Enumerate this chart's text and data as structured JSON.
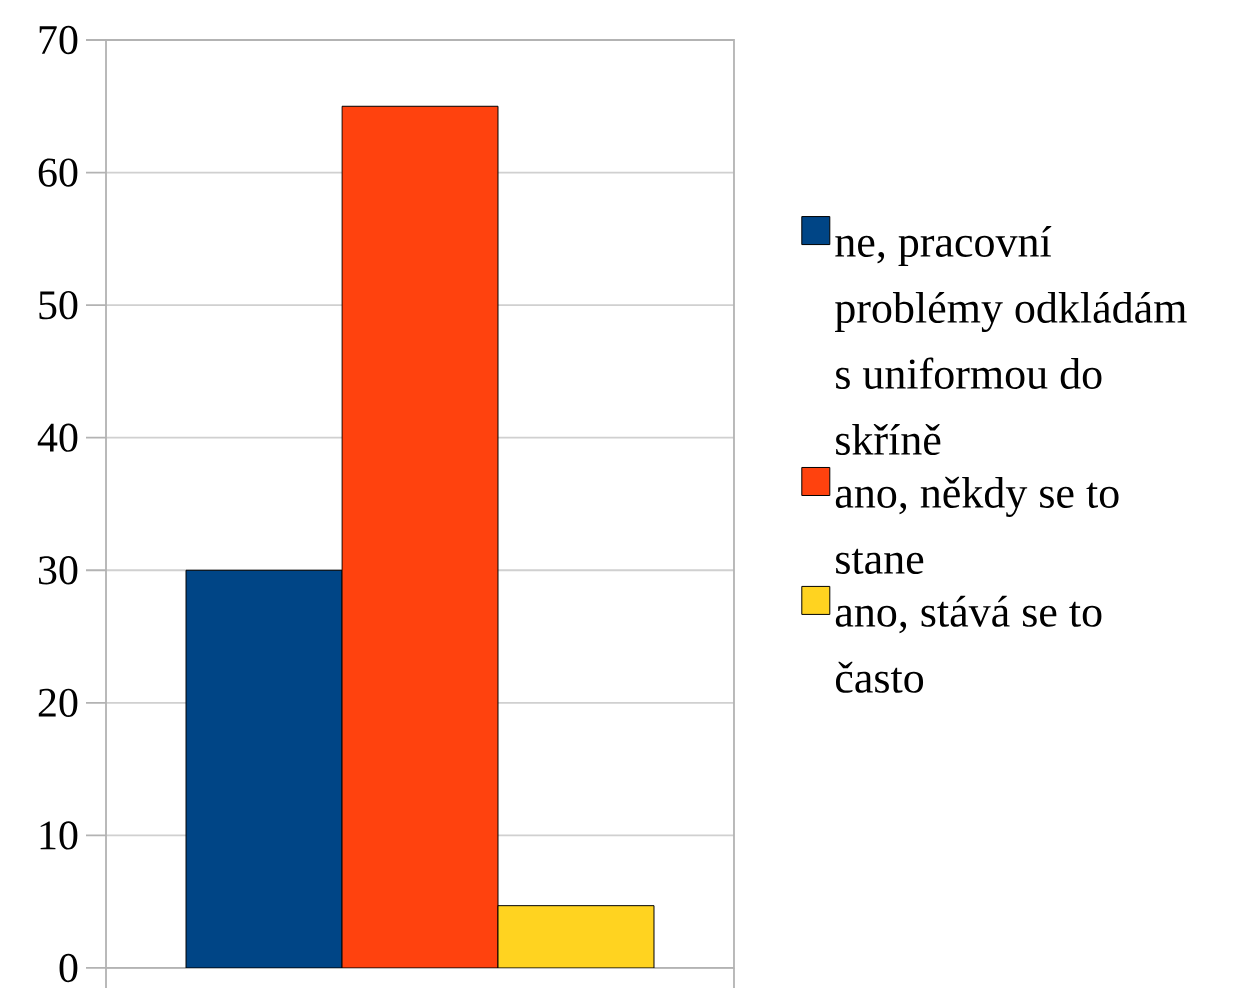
{
  "chart_data": {
    "type": "bar",
    "categories": [
      null
    ],
    "series": [
      {
        "name": "ne, pracovní problémy odkládám s uniformou do skříně",
        "color": "#004586",
        "values": [
          30
        ]
      },
      {
        "name": "ano, někdy se to stane",
        "color": "#ff420e",
        "values": [
          65
        ]
      },
      {
        "name": "ano, stává se to často",
        "color": "#ffd320",
        "values": [
          4.7
        ]
      }
    ],
    "ylim": [
      0,
      70
    ],
    "yticks": [
      0,
      10,
      20,
      30,
      40,
      50,
      60,
      70
    ],
    "grid": "y",
    "legend": "right"
  }
}
